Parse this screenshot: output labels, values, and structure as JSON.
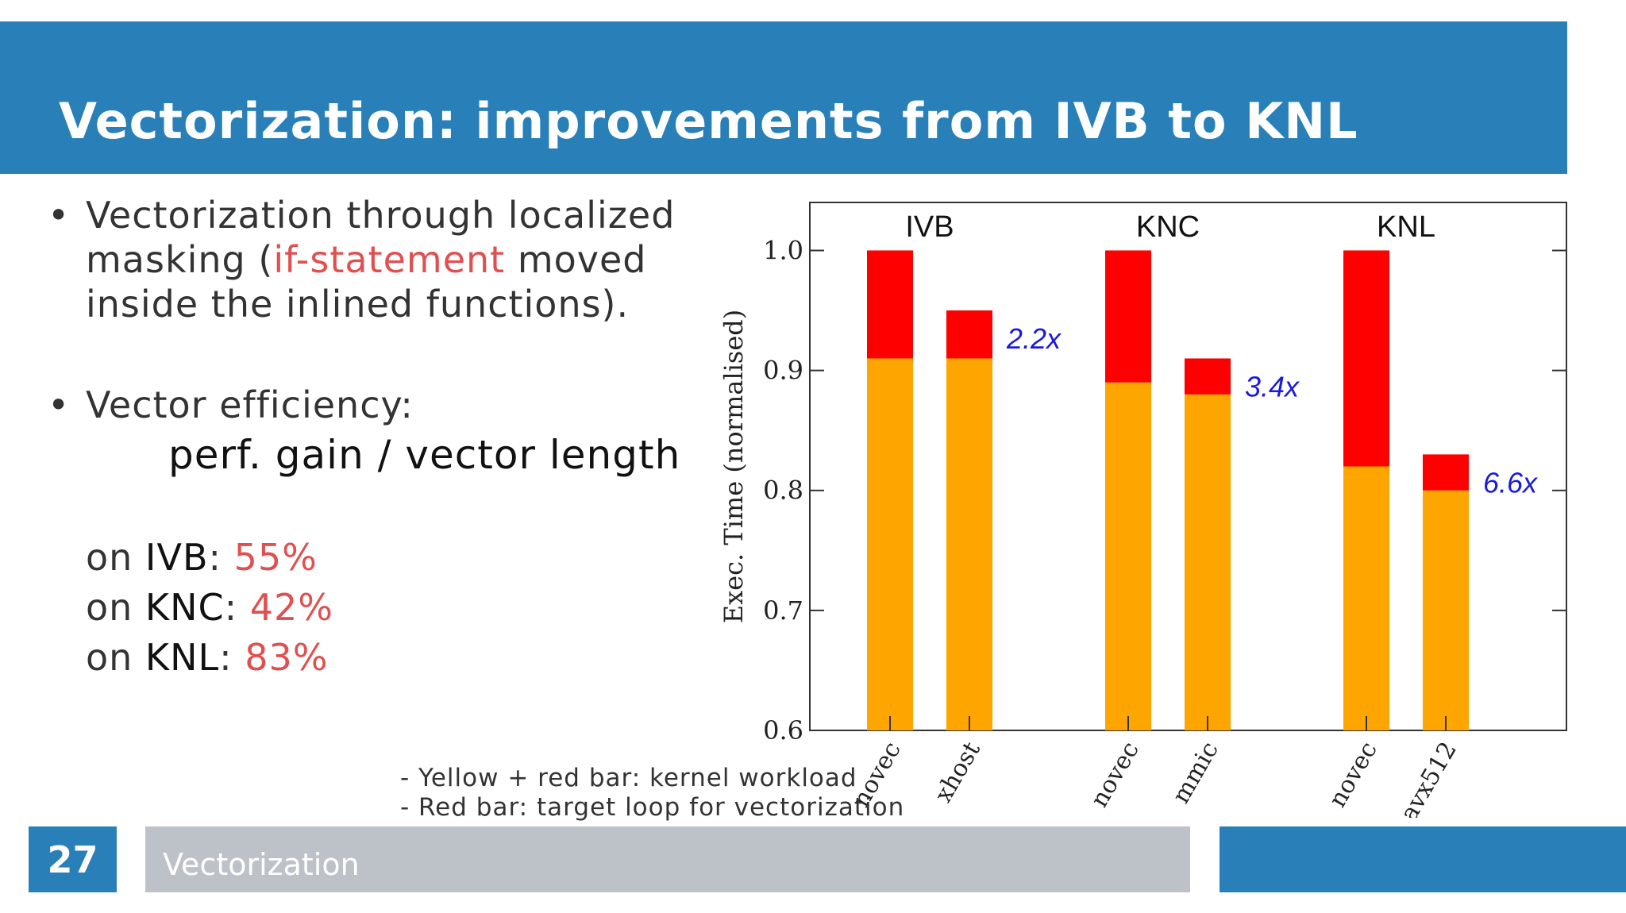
{
  "slide": {
    "title": "Vectorization: improvements from IVB to KNL",
    "page_number": "27",
    "footer_label": "Vectorization"
  },
  "bullets": {
    "b1_line1": "Vectorization through localized",
    "b1_line2_pre": "masking (",
    "b1_line2_red": "if-statement",
    "b1_line2_post": " moved",
    "b1_line3": "inside the inlined functions).",
    "b2_line1": "Vector efficiency:",
    "formula": "perf. gain / vector length",
    "eff": [
      {
        "pre": "on ",
        "arch": "IVB",
        "sep": ":  ",
        "value": "55%"
      },
      {
        "pre": "on ",
        "arch": "KNC",
        "sep": ": ",
        "value": "42%"
      },
      {
        "pre": "on ",
        "arch": "KNL",
        "sep": ": ",
        "value": "83%"
      }
    ]
  },
  "notes": {
    "line1": "- Yellow + red bar: kernel workload",
    "line2": "- Red bar: target loop for vectorization"
  },
  "colors": {
    "header_blue": "#2980b9",
    "bar_orange": "#ffa500",
    "bar_red": "#ff0000",
    "speedup_blue": "#1a1adc"
  },
  "chart_data": {
    "type": "bar",
    "ylabel": "Exec. Time (normalised)",
    "ylim": [
      0.6,
      1.04
    ],
    "yticks": [
      "0.6",
      "0.7",
      "0.8",
      "0.9",
      "1.0"
    ],
    "groups": [
      {
        "name": "IVB",
        "speedup": "2.2x",
        "bars": [
          {
            "label": "novec",
            "total": 1.0,
            "base": 0.91
          },
          {
            "label": "xhost",
            "total": 0.95,
            "base": 0.91
          }
        ]
      },
      {
        "name": "KNC",
        "speedup": "3.4x",
        "bars": [
          {
            "label": "novec",
            "total": 1.0,
            "base": 0.89
          },
          {
            "label": "mmic",
            "total": 0.91,
            "base": 0.88
          }
        ]
      },
      {
        "name": "KNL",
        "speedup": "6.6x",
        "bars": [
          {
            "label": "novec",
            "total": 1.0,
            "base": 0.82
          },
          {
            "label": "avx512",
            "total": 0.83,
            "base": 0.8
          }
        ]
      }
    ],
    "series": [
      {
        "name": "Yellow + red bar: kernel workload"
      },
      {
        "name": "Red bar: target loop for vectorization"
      }
    ]
  }
}
